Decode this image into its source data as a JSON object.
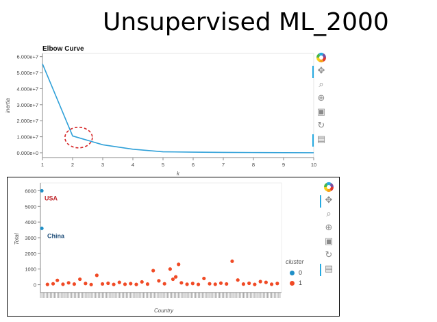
{
  "slide": {
    "title": "Unsupervised ML_2000"
  },
  "chart_data": [
    {
      "type": "line",
      "title": "Elbow Curve",
      "xlabel": "k",
      "ylabel": "inertia",
      "x": [
        1,
        2,
        3,
        4,
        5,
        6,
        7,
        8,
        9,
        10
      ],
      "xlim": [
        1,
        10
      ],
      "ylim": [
        -3000000,
        62000000
      ],
      "x_ticks": [
        "1",
        "2",
        "3",
        "4",
        "5",
        "6",
        "7",
        "8",
        "9",
        "10"
      ],
      "y_ticks": [
        {
          "value": 0,
          "label": "0.000e+0"
        },
        {
          "value": 10000000,
          "label": "1.000e+7"
        },
        {
          "value": 20000000,
          "label": "2.000e+7"
        },
        {
          "value": 30000000,
          "label": "3.000e+7"
        },
        {
          "value": 40000000,
          "label": "4.000e+7"
        },
        {
          "value": 50000000,
          "label": "5.000e+7"
        },
        {
          "value": 60000000,
          "label": "6.000e+7"
        }
      ],
      "series": [
        {
          "values": [
            55500000,
            10500000,
            5000000,
            2200000,
            600000,
            400000,
            250000,
            150000,
            80000,
            30000
          ],
          "color": "#2fa0d8"
        }
      ],
      "annotations": [
        {
          "shape": "dashed-ellipse",
          "x": 2.2,
          "y": 9500000,
          "color": "#d62728"
        }
      ],
      "grid": false
    },
    {
      "type": "scatter",
      "title": "",
      "xlabel": "Country",
      "ylabel": "Total",
      "xlim": [
        0,
        171
      ],
      "ylim": [
        -500,
        6500
      ],
      "y_ticks": [
        0,
        1000,
        2000,
        3000,
        4000,
        5000,
        6000
      ],
      "legend": {
        "title": "cluster",
        "position": "right"
      },
      "series": [
        {
          "name": "0",
          "color": "#1f8fc7",
          "points": [
            {
              "x": 1,
              "y": 6000
            },
            {
              "x": 1,
              "y": 3600
            }
          ]
        },
        {
          "name": "1",
          "color": "#f04a25",
          "points": [
            {
              "x": 5,
              "y": 20
            },
            {
              "x": 9,
              "y": 60
            },
            {
              "x": 12,
              "y": 280
            },
            {
              "x": 16,
              "y": 30
            },
            {
              "x": 20,
              "y": 120
            },
            {
              "x": 24,
              "y": 40
            },
            {
              "x": 28,
              "y": 350
            },
            {
              "x": 32,
              "y": 80
            },
            {
              "x": 36,
              "y": 10
            },
            {
              "x": 40,
              "y": 600
            },
            {
              "x": 44,
              "y": 50
            },
            {
              "x": 48,
              "y": 90
            },
            {
              "x": 52,
              "y": 20
            },
            {
              "x": 56,
              "y": 150
            },
            {
              "x": 60,
              "y": 30
            },
            {
              "x": 64,
              "y": 70
            },
            {
              "x": 68,
              "y": 20
            },
            {
              "x": 72,
              "y": 180
            },
            {
              "x": 76,
              "y": 40
            },
            {
              "x": 80,
              "y": 900
            },
            {
              "x": 84,
              "y": 250
            },
            {
              "x": 88,
              "y": 60
            },
            {
              "x": 92,
              "y": 1000
            },
            {
              "x": 94,
              "y": 350
            },
            {
              "x": 96,
              "y": 500
            },
            {
              "x": 98,
              "y": 1300
            },
            {
              "x": 100,
              "y": 120
            },
            {
              "x": 104,
              "y": 30
            },
            {
              "x": 108,
              "y": 80
            },
            {
              "x": 112,
              "y": 20
            },
            {
              "x": 116,
              "y": 400
            },
            {
              "x": 120,
              "y": 60
            },
            {
              "x": 124,
              "y": 30
            },
            {
              "x": 128,
              "y": 100
            },
            {
              "x": 132,
              "y": 50
            },
            {
              "x": 136,
              "y": 1500
            },
            {
              "x": 140,
              "y": 300
            },
            {
              "x": 144,
              "y": 40
            },
            {
              "x": 148,
              "y": 90
            },
            {
              "x": 152,
              "y": 20
            },
            {
              "x": 156,
              "y": 200
            },
            {
              "x": 160,
              "y": 150
            },
            {
              "x": 164,
              "y": 30
            },
            {
              "x": 168,
              "y": 80
            }
          ]
        }
      ],
      "annotations": [
        {
          "text": "USA",
          "x": 1,
          "y": 6000,
          "color": "#c0282d"
        },
        {
          "text": "China",
          "x": 1,
          "y": 3600,
          "color": "#1f4e79"
        }
      ]
    }
  ],
  "toolbars": {
    "tools": [
      {
        "name": "logo",
        "glyph": ""
      },
      {
        "name": "pan",
        "glyph": "✥"
      },
      {
        "name": "box-zoom",
        "glyph": "⌕"
      },
      {
        "name": "wheel-zoom",
        "glyph": "⊕"
      },
      {
        "name": "save",
        "glyph": "▣"
      },
      {
        "name": "reset",
        "glyph": "↻"
      },
      {
        "name": "hover",
        "glyph": "▤"
      }
    ]
  }
}
